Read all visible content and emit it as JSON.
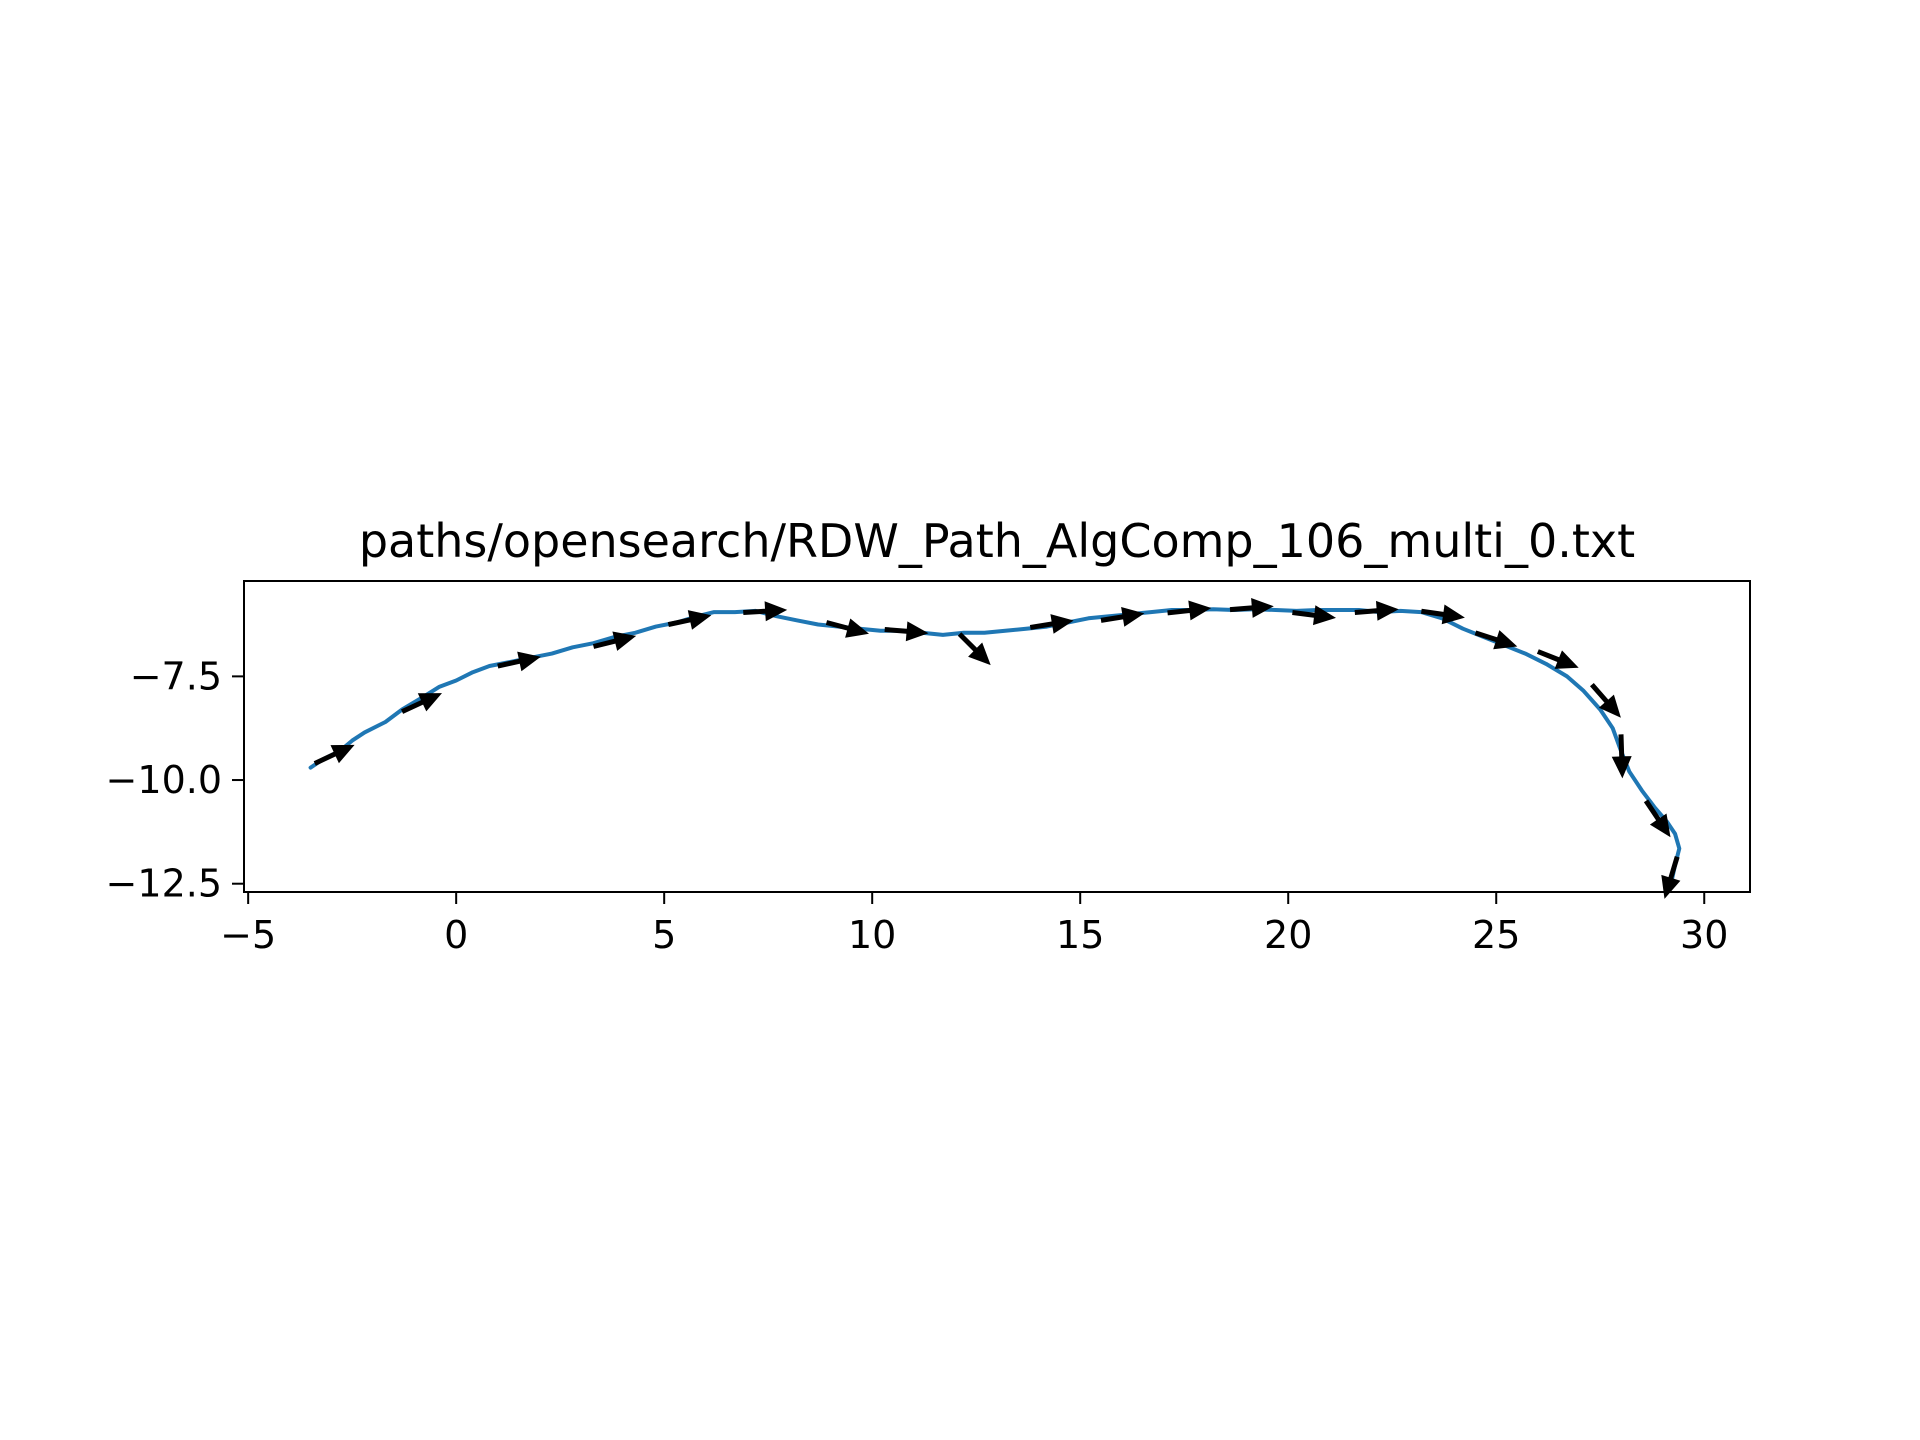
{
  "chart_data": {
    "type": "line",
    "title": "paths/opensearch/RDW_Path_AlgComp_106_multi_0.txt",
    "xlabel": "",
    "ylabel": "",
    "xlim": [
      -5.1,
      31.1
    ],
    "ylim": [
      -12.7,
      -5.2
    ],
    "xticks": [
      -5,
      0,
      5,
      10,
      15,
      20,
      25,
      30
    ],
    "xtick_labels": [
      "−5",
      "0",
      "5",
      "10",
      "15",
      "20",
      "25",
      "30"
    ],
    "yticks": [
      -7.5,
      -10.0,
      -12.5
    ],
    "ytick_labels": [
      "−7.5",
      "−10.0",
      "−12.5"
    ],
    "grid": false,
    "colors": {
      "path": "#1f77b4",
      "arrows": "#000000"
    },
    "series": [
      {
        "x": [
          -3.5,
          -3.2,
          -2.8,
          -2.5,
          -2.2,
          -1.7,
          -1.3,
          -0.8,
          -0.4,
          0,
          0.4,
          0.8,
          1.3,
          1.8,
          2.3,
          2.8,
          3.3,
          3.8,
          4.3,
          4.8,
          5.3,
          5.8,
          6.2,
          6.7,
          7.2,
          7.7,
          8.2,
          8.7,
          9.2,
          9.7,
          10.2,
          10.7,
          11.2,
          11.7,
          12.2,
          12.7,
          13.2,
          13.7,
          14.2,
          14.7,
          15.2,
          15.7,
          16.2,
          16.7,
          17.2,
          17.7,
          18.2,
          18.7,
          19.2,
          19.7,
          20.2,
          20.7,
          21.2,
          21.7,
          22.2,
          22.7,
          23.2,
          23.7,
          24.2,
          24.7,
          25.2,
          25.7,
          26.2,
          26.7,
          27.1,
          27.5,
          27.8,
          28.0,
          28.2,
          28.5,
          28.8,
          29.1,
          29.3,
          29.4,
          29.3,
          29.2
        ],
        "y": [
          -9.7,
          -9.5,
          -9.3,
          -9.05,
          -8.85,
          -8.6,
          -8.3,
          -8.0,
          -7.75,
          -7.6,
          -7.4,
          -7.25,
          -7.15,
          -7.05,
          -6.95,
          -6.8,
          -6.7,
          -6.55,
          -6.45,
          -6.3,
          -6.2,
          -6.05,
          -5.95,
          -5.95,
          -5.92,
          -6.05,
          -6.15,
          -6.25,
          -6.3,
          -6.35,
          -6.4,
          -6.4,
          -6.45,
          -6.5,
          -6.45,
          -6.45,
          -6.4,
          -6.35,
          -6.3,
          -6.2,
          -6.1,
          -6.05,
          -6.0,
          -5.95,
          -5.9,
          -5.9,
          -5.88,
          -5.9,
          -5.88,
          -5.9,
          -5.92,
          -5.9,
          -5.9,
          -5.9,
          -5.95,
          -5.92,
          -5.95,
          -6.1,
          -6.35,
          -6.55,
          -6.75,
          -6.95,
          -7.2,
          -7.5,
          -7.85,
          -8.3,
          -8.75,
          -9.3,
          -9.8,
          -10.25,
          -10.65,
          -11.0,
          -11.3,
          -11.65,
          -12.05,
          -12.5
        ]
      }
    ],
    "arrows": [
      {
        "x": -3.4,
        "y": -9.6,
        "dx": 0.6,
        "dy": 0.28
      },
      {
        "x": -1.3,
        "y": -8.35,
        "dx": 0.6,
        "dy": 0.28
      },
      {
        "x": 1.0,
        "y": -7.25,
        "dx": 0.65,
        "dy": 0.14
      },
      {
        "x": 3.3,
        "y": -6.78,
        "dx": 0.6,
        "dy": 0.15
      },
      {
        "x": 5.1,
        "y": -6.25,
        "dx": 0.65,
        "dy": 0.14
      },
      {
        "x": 6.9,
        "y": -5.96,
        "dx": 0.68,
        "dy": 0.04
      },
      {
        "x": 8.9,
        "y": -6.2,
        "dx": 0.6,
        "dy": -0.16
      },
      {
        "x": 10.3,
        "y": -6.37,
        "dx": 0.6,
        "dy": -0.05
      },
      {
        "x": 12.1,
        "y": -6.48,
        "dx": 0.35,
        "dy": -0.35
      },
      {
        "x": 13.8,
        "y": -6.32,
        "dx": 0.62,
        "dy": 0.1
      },
      {
        "x": 15.5,
        "y": -6.15,
        "dx": 0.62,
        "dy": 0.1
      },
      {
        "x": 17.1,
        "y": -5.97,
        "dx": 0.62,
        "dy": 0.07
      },
      {
        "x": 18.6,
        "y": -5.89,
        "dx": 0.65,
        "dy": 0.05
      },
      {
        "x": 20.1,
        "y": -5.96,
        "dx": 0.65,
        "dy": -0.08
      },
      {
        "x": 21.6,
        "y": -5.96,
        "dx": 0.65,
        "dy": 0.05
      },
      {
        "x": 23.2,
        "y": -5.93,
        "dx": 0.62,
        "dy": -0.09
      },
      {
        "x": 24.5,
        "y": -6.45,
        "dx": 0.55,
        "dy": -0.18
      },
      {
        "x": 26.0,
        "y": -6.9,
        "dx": 0.55,
        "dy": -0.22
      },
      {
        "x": 27.3,
        "y": -7.7,
        "dx": 0.35,
        "dy": -0.4
      },
      {
        "x": 28.0,
        "y": -8.9,
        "dx": 0.02,
        "dy": -0.65
      },
      {
        "x": 28.6,
        "y": -10.5,
        "dx": 0.3,
        "dy": -0.45
      },
      {
        "x": 29.35,
        "y": -11.85,
        "dx": -0.15,
        "dy": -0.5
      }
    ]
  }
}
